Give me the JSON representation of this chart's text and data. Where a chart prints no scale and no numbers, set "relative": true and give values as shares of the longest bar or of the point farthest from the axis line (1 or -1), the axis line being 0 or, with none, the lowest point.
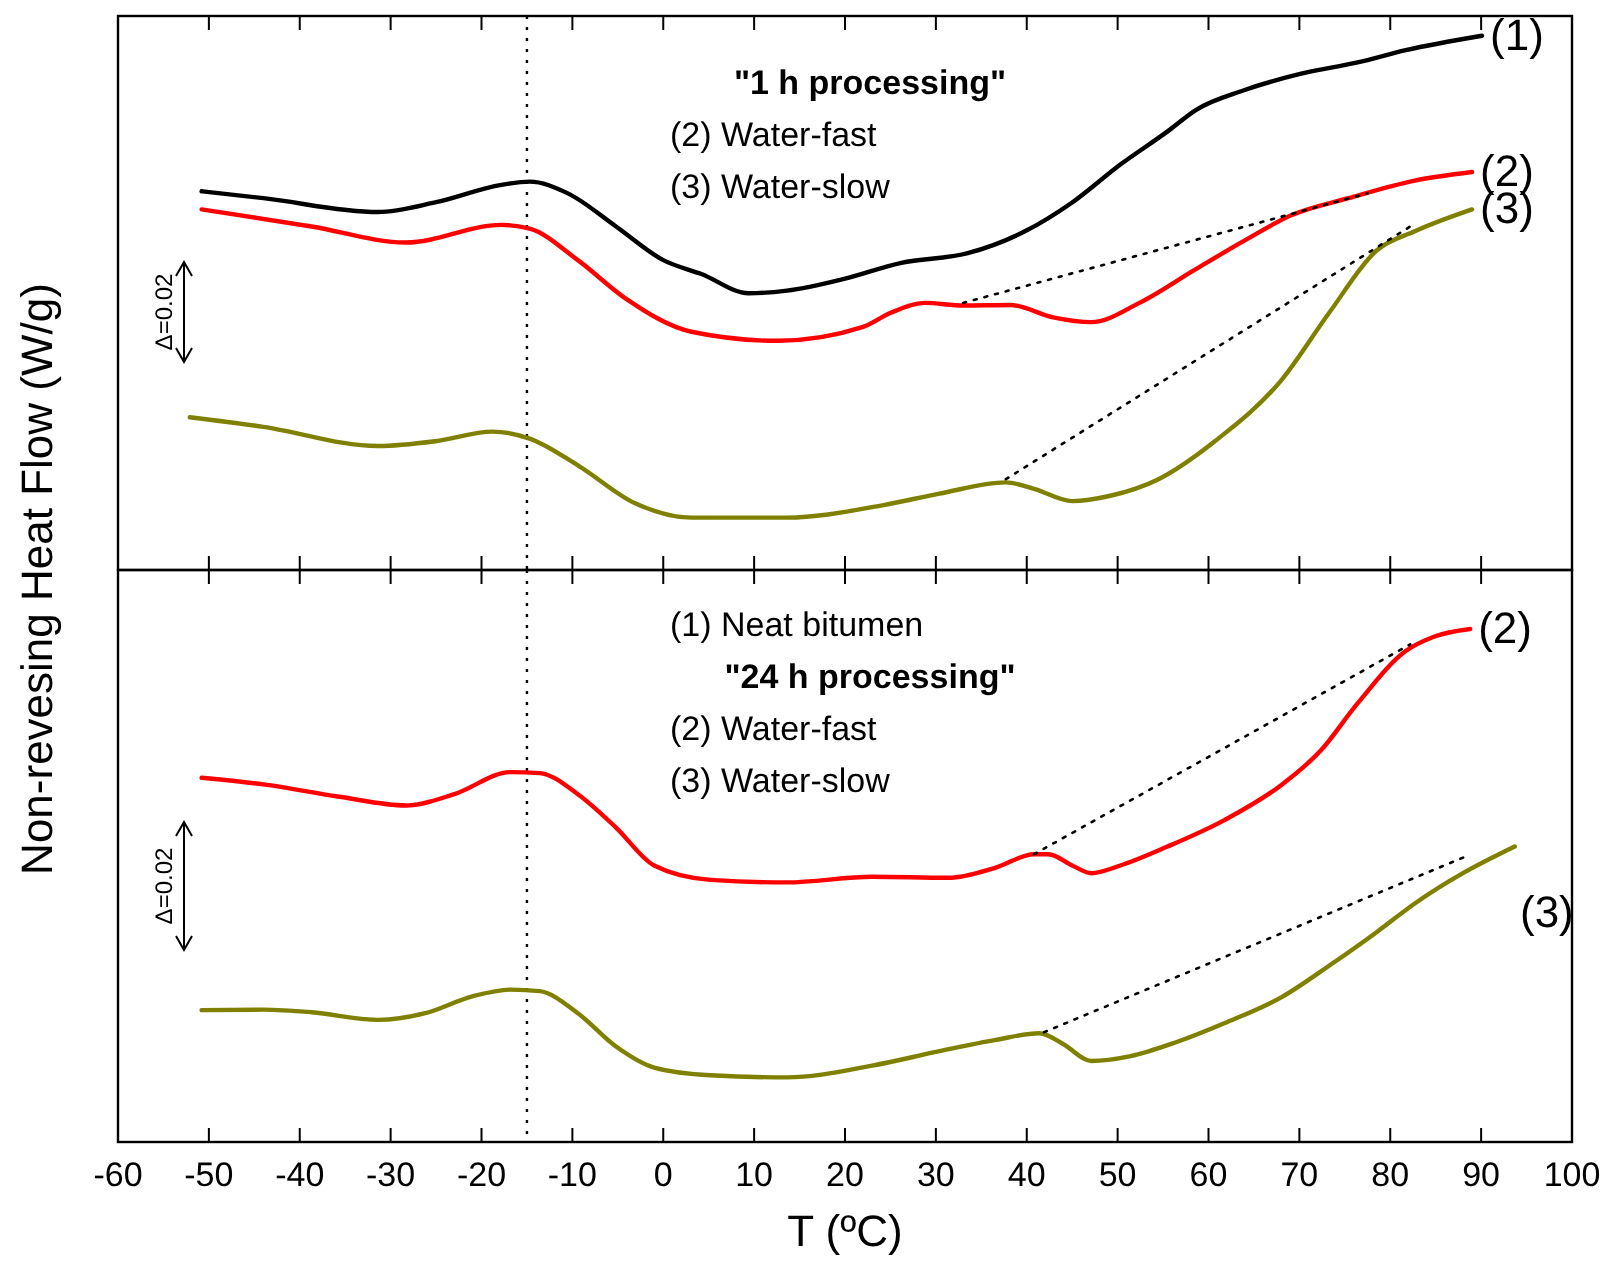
{
  "chart_data": [
    {
      "type": "line",
      "relative": true,
      "ylabel": "Non-revesing Heat Flow (W/g)",
      "xlim": [
        -60,
        100
      ],
      "xticks": [
        -60,
        -50,
        -40,
        -30,
        -20,
        -10,
        0,
        10,
        20,
        30,
        40,
        50,
        60,
        70,
        80,
        90,
        100
      ],
      "tick_labels": false,
      "annotations": [
        "\"1 h processing\"",
        "(2) Water-fast",
        "(3) Water-slow",
        "Δ=0.02"
      ],
      "ref_lines": [
        {
          "axis": "x",
          "value": -15,
          "color": "#000000",
          "line_style": "dotted"
        }
      ],
      "series": [
        {
          "name": "(1)",
          "color": "#000000",
          "line_style": "solid",
          "x": [
            -50.8,
            -44.0,
            -31.4,
            -25.1,
            -17.8,
            -14.7,
            -10.5,
            -5.2,
            0,
            4.2,
            9.4,
            13.6,
            19.9,
            26.2,
            33.5,
            39.8,
            45.0,
            50.3,
            55.5,
            58.6,
            63.9,
            70.2,
            76.4,
            81.7,
            90.1
          ],
          "values": [
            0.709,
            0.696,
            0.67,
            0.688,
            0.721,
            0.727,
            0.705,
            0.643,
            0.58,
            0.554,
            0.518,
            0.523,
            0.545,
            0.575,
            0.593,
            0.634,
            0.688,
            0.759,
            0.821,
            0.861,
            0.898,
            0.929,
            0.95,
            0.973,
            1.0
          ]
        },
        {
          "name": "(2)",
          "color": "#ff0000",
          "line_style": "solid",
          "x": [
            -50.8,
            -38.7,
            -28.3,
            -17.8,
            -14.7,
            -9.4,
            -4.2,
            3.1,
            12.6,
            22.0,
            25.1,
            28.8,
            33.0,
            38.2,
            42.9,
            47.1,
            52.4,
            58.6,
            63.9,
            69.1,
            75.4,
            82.7,
            89.0
          ],
          "values": [
            0.675,
            0.643,
            0.613,
            0.646,
            0.639,
            0.58,
            0.509,
            0.446,
            0.429,
            0.455,
            0.482,
            0.5,
            0.495,
            0.496,
            0.473,
            0.464,
            0.5,
            0.563,
            0.616,
            0.664,
            0.696,
            0.729,
            0.745
          ]
        },
        {
          "name": "(3)",
          "color": "#808000",
          "line_style": "solid",
          "x": [
            -52.1,
            -44.0,
            -31.4,
            -25.1,
            -18.8,
            -14.7,
            -9.4,
            -3.1,
            3.1,
            13.6,
            24.1,
            30.4,
            37.7,
            40.8,
            45.0,
            49.2,
            54.5,
            60.7,
            68.1,
            73.3,
            78.5,
            82.7,
            89.0
          ],
          "values": [
            0.286,
            0.268,
            0.232,
            0.241,
            0.259,
            0.246,
            0.196,
            0.125,
            0.098,
            0.098,
            0.121,
            0.143,
            0.164,
            0.152,
            0.129,
            0.139,
            0.17,
            0.241,
            0.357,
            0.482,
            0.598,
            0.634,
            0.675
          ]
        },
        {
          "type": "line",
          "color": "#000000",
          "line_style": "dotted",
          "x": [
            33.0,
            77.5
          ],
          "values": [
            0.5,
            0.705
          ]
        },
        {
          "type": "line",
          "color": "#000000",
          "line_style": "dotted",
          "x": [
            37.7,
            82.2
          ],
          "values": [
            0.17,
            0.643
          ]
        }
      ]
    },
    {
      "type": "line",
      "relative": true,
      "xlabel": "T (ºC)",
      "xlim": [
        -60,
        100
      ],
      "xticks": [
        -60,
        -50,
        -40,
        -30,
        -20,
        -10,
        0,
        10,
        20,
        30,
        40,
        50,
        60,
        70,
        80,
        90,
        100
      ],
      "tick_labels": "x",
      "annotations": [
        "(1) Neat bitumen",
        "\"24 h processing\"",
        "(2) Water-fast",
        "(3) Water-slow",
        "Δ=0.02"
      ],
      "ref_lines": [
        {
          "axis": "x",
          "value": -15,
          "color": "#000000",
          "line_style": "dotted"
        }
      ],
      "series": [
        {
          "name": "(2)",
          "color": "#ff0000",
          "line_style": "solid",
          "x": [
            -50.8,
            -44.0,
            -35.6,
            -28.3,
            -23.0,
            -16.8,
            -13.6,
            -9.4,
            -5.2,
            -1.0,
            5.2,
            13.6,
            23.0,
            31.4,
            36.6,
            40.8,
            42.4,
            45.0,
            47.1,
            50.3,
            55.5,
            61.8,
            68.1,
            72.3,
            76.4,
            81.7,
            84.8,
            88.8
          ],
          "values": [
            0.71,
            0.697,
            0.673,
            0.656,
            0.678,
            0.721,
            0.719,
            0.678,
            0.613,
            0.539,
            0.511,
            0.506,
            0.517,
            0.515,
            0.535,
            0.561,
            0.561,
            0.539,
            0.524,
            0.539,
            0.576,
            0.628,
            0.697,
            0.762,
            0.855,
            0.957,
            0.985,
            1.0
          ]
        },
        {
          "name": "(3)",
          "color": "#808000",
          "line_style": "solid",
          "x": [
            -50.8,
            -44.0,
            -38.7,
            -31.4,
            -26.2,
            -21.0,
            -16.8,
            -13.6,
            -9.4,
            -5.2,
            -1.0,
            5.2,
            13.6,
            23.0,
            30.4,
            36.6,
            41.4,
            44.0,
            47.1,
            51.3,
            56.5,
            61.8,
            68.1,
            73.3,
            78.5,
            82.7,
            88.0,
            93.7
          ],
          "values": [
            0.257,
            0.258,
            0.253,
            0.238,
            0.251,
            0.284,
            0.297,
            0.294,
            0.251,
            0.186,
            0.145,
            0.13,
            0.126,
            0.149,
            0.177,
            0.199,
            0.212,
            0.191,
            0.158,
            0.167,
            0.195,
            0.232,
            0.283,
            0.344,
            0.409,
            0.465,
            0.524,
            0.576
          ]
        },
        {
          "type": "line",
          "color": "#000000",
          "line_style": "dotted",
          "x": [
            40.8,
            82.2
          ],
          "values": [
            0.561,
            0.97
          ]
        },
        {
          "type": "line",
          "color": "#000000",
          "line_style": "dotted",
          "x": [
            41.9,
            88.5
          ],
          "values": [
            0.214,
            0.558
          ]
        }
      ]
    }
  ]
}
